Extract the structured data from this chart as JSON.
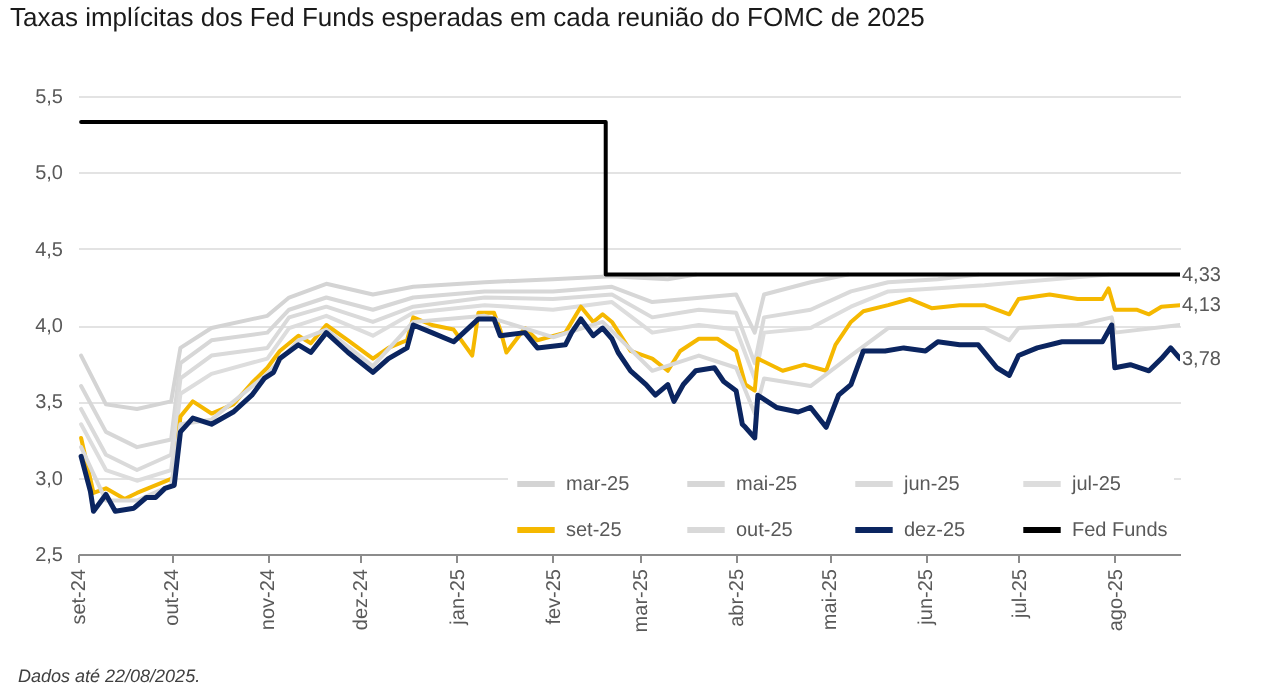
{
  "chart_data": {
    "type": "line",
    "title": "Taxas implícitas dos Fed Funds esperadas em cada reunião do FOMC de 2025",
    "annotations": [
      "Dados até 22/08/2025.",
      {
        "text": "4,33",
        "x": "2025-08-22",
        "y": 4.33
      },
      {
        "text": "4,13",
        "x": "2025-08-22",
        "y": 4.13
      },
      {
        "text": "3,78",
        "x": "2025-08-22",
        "y": 3.78
      }
    ],
    "xlim": [
      "2024-09-01",
      "2025-08-22"
    ],
    "xticks": [
      {
        "value": "2024-09-01",
        "label": "set-24"
      },
      {
        "value": "2024-10-01",
        "label": "out-24"
      },
      {
        "value": "2024-11-01",
        "label": "nov-24"
      },
      {
        "value": "2024-12-01",
        "label": "dez-24"
      },
      {
        "value": "2025-01-01",
        "label": "jan-25"
      },
      {
        "value": "2025-02-01",
        "label": "fev-25"
      },
      {
        "value": "2025-03-01",
        "label": "mar-25"
      },
      {
        "value": "2025-04-01",
        "label": "abr-25"
      },
      {
        "value": "2025-05-01",
        "label": "mai-25"
      },
      {
        "value": "2025-06-01",
        "label": "jun-25"
      },
      {
        "value": "2025-07-01",
        "label": "jul-25"
      },
      {
        "value": "2025-08-01",
        "label": "ago-25"
      }
    ],
    "ylim": [
      2.5,
      5.5
    ],
    "yticks": [
      {
        "value": 2.5,
        "label": "2,5"
      },
      {
        "value": 3,
        "label": "3,0"
      },
      {
        "value": 3.5,
        "label": "3,5"
      },
      {
        "value": 4,
        "label": "4,0"
      },
      {
        "value": 4.5,
        "label": "4,5"
      },
      {
        "value": 5,
        "label": "5,0"
      },
      {
        "value": 5.5,
        "label": "5,5"
      }
    ],
    "grid": "y",
    "legend": "bottom right",
    "series": [
      {
        "name": "mar-25",
        "color": "#d4d4d4",
        "x": [
          "2024-09-02",
          "2024-09-10",
          "2024-09-20",
          "2024-10-01",
          "2024-10-04",
          "2024-10-14",
          "2024-11-01",
          "2024-11-08",
          "2024-11-20",
          "2024-12-05",
          "2024-12-18",
          "2025-01-10",
          "2025-02-01",
          "2025-02-20",
          "2025-03-10",
          "2025-03-19"
        ],
        "values": [
          3.8,
          3.48,
          3.45,
          3.5,
          3.85,
          3.98,
          4.06,
          4.18,
          4.27,
          4.2,
          4.25,
          4.28,
          4.3,
          4.32,
          4.3,
          4.33
        ]
      },
      {
        "name": "mai-25",
        "color": "#d7d7d7",
        "x": [
          "2024-09-02",
          "2024-09-10",
          "2024-09-20",
          "2024-10-01",
          "2024-10-04",
          "2024-10-14",
          "2024-11-01",
          "2024-11-08",
          "2024-11-20",
          "2024-12-05",
          "2024-12-18",
          "2025-01-10",
          "2025-02-01",
          "2025-02-20",
          "2025-03-05",
          "2025-04-01",
          "2025-04-07",
          "2025-04-10",
          "2025-04-25",
          "2025-05-07"
        ],
        "values": [
          3.6,
          3.3,
          3.2,
          3.25,
          3.75,
          3.9,
          3.95,
          4.1,
          4.18,
          4.1,
          4.18,
          4.22,
          4.22,
          4.25,
          4.15,
          4.2,
          3.95,
          4.2,
          4.28,
          4.33
        ]
      },
      {
        "name": "jun-25",
        "color": "#dadada",
        "x": [
          "2024-09-02",
          "2024-09-10",
          "2024-09-20",
          "2024-10-01",
          "2024-10-04",
          "2024-10-14",
          "2024-11-01",
          "2024-11-08",
          "2024-11-20",
          "2024-12-05",
          "2024-12-18",
          "2025-01-10",
          "2025-02-01",
          "2025-02-20",
          "2025-03-05",
          "2025-03-20",
          "2025-04-01",
          "2025-04-07",
          "2025-04-10",
          "2025-04-25",
          "2025-05-08",
          "2025-05-20",
          "2025-06-05",
          "2025-06-18"
        ],
        "values": [
          3.45,
          3.15,
          3.05,
          3.15,
          3.65,
          3.8,
          3.85,
          4.05,
          4.12,
          4.02,
          4.12,
          4.18,
          4.17,
          4.2,
          4.05,
          4.1,
          4.08,
          3.75,
          4.05,
          4.1,
          4.22,
          4.28,
          4.3,
          4.33
        ]
      },
      {
        "name": "jul-25",
        "color": "#dddddd",
        "x": [
          "2024-09-02",
          "2024-09-10",
          "2024-09-20",
          "2024-10-01",
          "2024-10-04",
          "2024-10-14",
          "2024-11-01",
          "2024-11-08",
          "2024-11-20",
          "2024-12-05",
          "2024-12-18",
          "2025-01-10",
          "2025-02-01",
          "2025-02-20",
          "2025-03-05",
          "2025-03-20",
          "2025-04-01",
          "2025-04-07",
          "2025-04-10",
          "2025-04-25",
          "2025-05-08",
          "2025-05-20",
          "2025-06-05",
          "2025-06-20",
          "2025-07-01",
          "2025-07-30"
        ],
        "values": [
          3.35,
          3.05,
          2.98,
          3.05,
          3.55,
          3.68,
          3.78,
          3.98,
          4.06,
          3.93,
          4.08,
          4.13,
          4.1,
          4.15,
          3.95,
          4.0,
          3.97,
          3.65,
          3.95,
          3.98,
          4.12,
          4.22,
          4.24,
          4.26,
          4.28,
          4.33
        ]
      },
      {
        "name": "set-25",
        "color": "#f5b800",
        "x": [
          "2024-09-02",
          "2024-09-06",
          "2024-09-10",
          "2024-09-16",
          "2024-09-20",
          "2024-10-02",
          "2024-10-04",
          "2024-10-08",
          "2024-10-14",
          "2024-10-21",
          "2024-10-27",
          "2024-11-01",
          "2024-11-05",
          "2024-11-11",
          "2024-11-15",
          "2024-11-20",
          "2024-11-27",
          "2024-12-05",
          "2024-12-10",
          "2024-12-16",
          "2024-12-18",
          "2024-12-24",
          "2024-12-31",
          "2025-01-06",
          "2025-01-08",
          "2025-01-13",
          "2025-01-15",
          "2025-01-17",
          "2025-01-23",
          "2025-01-27",
          "2025-02-05",
          "2025-02-10",
          "2025-02-14",
          "2025-02-17",
          "2025-02-20",
          "2025-02-26",
          "2025-03-05",
          "2025-03-10",
          "2025-03-14",
          "2025-03-20",
          "2025-03-26",
          "2025-04-01",
          "2025-04-04",
          "2025-04-07",
          "2025-04-08",
          "2025-04-16",
          "2025-04-23",
          "2025-04-30",
          "2025-05-03",
          "2025-05-08",
          "2025-05-12",
          "2025-05-20",
          "2025-05-27",
          "2025-06-03",
          "2025-06-12",
          "2025-06-20",
          "2025-06-28",
          "2025-07-01",
          "2025-07-11",
          "2025-07-20",
          "2025-07-28",
          "2025-07-30",
          "2025-08-01",
          "2025-08-08",
          "2025-08-12",
          "2025-08-16",
          "2025-08-22"
        ],
        "values": [
          3.26,
          2.9,
          2.93,
          2.86,
          2.9,
          3.0,
          3.4,
          3.5,
          3.42,
          3.48,
          3.62,
          3.72,
          3.83,
          3.93,
          3.88,
          4.0,
          3.9,
          3.78,
          3.85,
          3.9,
          4.05,
          4.0,
          3.97,
          3.8,
          4.08,
          4.08,
          3.97,
          3.82,
          3.98,
          3.9,
          3.95,
          4.12,
          4.02,
          4.07,
          4.02,
          3.83,
          3.78,
          3.7,
          3.83,
          3.91,
          3.91,
          3.83,
          3.61,
          3.57,
          3.78,
          3.7,
          3.74,
          3.7,
          3.87,
          4.02,
          4.09,
          4.13,
          4.17,
          4.11,
          4.13,
          4.13,
          4.07,
          4.17,
          4.2,
          4.17,
          4.17,
          4.24,
          4.1,
          4.1,
          4.07,
          4.12,
          4.13
        ]
      },
      {
        "name": "out-25",
        "color": "#d9d9d9",
        "x": [
          "2024-09-02",
          "2024-09-10",
          "2024-09-20",
          "2024-10-01",
          "2024-10-04",
          "2024-10-14",
          "2024-11-01",
          "2024-11-11",
          "2024-11-20",
          "2024-12-05",
          "2024-12-18",
          "2025-01-10",
          "2025-02-01",
          "2025-02-17",
          "2025-03-05",
          "2025-03-20",
          "2025-04-01",
          "2025-04-07",
          "2025-04-10",
          "2025-04-25",
          "2025-05-08",
          "2025-05-20",
          "2025-06-05",
          "2025-06-20",
          "2025-06-28",
          "2025-07-01",
          "2025-07-20",
          "2025-07-31",
          "2025-08-01",
          "2025-08-22"
        ],
        "values": [
          3.2,
          2.85,
          2.85,
          2.95,
          3.35,
          3.38,
          3.68,
          3.9,
          3.97,
          3.73,
          4.02,
          4.06,
          3.92,
          4.02,
          3.7,
          3.8,
          3.72,
          3.42,
          3.65,
          3.6,
          3.8,
          3.98,
          3.98,
          3.98,
          3.9,
          3.98,
          4.0,
          4.05,
          3.95,
          4.0
        ]
      },
      {
        "name": "dez-25",
        "color": "#0b2560",
        "x": [
          "2024-09-02",
          "2024-09-05",
          "2024-09-06",
          "2024-09-10",
          "2024-09-13",
          "2024-09-16",
          "2024-09-19",
          "2024-09-23",
          "2024-09-26",
          "2024-09-29",
          "2024-10-02",
          "2024-10-04",
          "2024-10-08",
          "2024-10-14",
          "2024-10-21",
          "2024-10-27",
          "2024-10-31",
          "2024-11-03",
          "2024-11-05",
          "2024-11-11",
          "2024-11-15",
          "2024-11-20",
          "2024-11-27",
          "2024-12-05",
          "2024-12-10",
          "2024-12-16",
          "2024-12-18",
          "2024-12-24",
          "2024-12-31",
          "2025-01-08",
          "2025-01-13",
          "2025-01-15",
          "2025-01-23",
          "2025-01-27",
          "2025-02-05",
          "2025-02-07",
          "2025-02-10",
          "2025-02-14",
          "2025-02-17",
          "2025-02-20",
          "2025-02-22",
          "2025-02-26",
          "2025-03-03",
          "2025-03-06",
          "2025-03-10",
          "2025-03-12",
          "2025-03-15",
          "2025-03-19",
          "2025-03-25",
          "2025-03-28",
          "2025-04-01",
          "2025-04-03",
          "2025-04-04",
          "2025-04-07",
          "2025-04-08",
          "2025-04-14",
          "2025-04-21",
          "2025-04-25",
          "2025-04-30",
          "2025-05-04",
          "2025-05-08",
          "2025-05-12",
          "2025-05-19",
          "2025-05-25",
          "2025-06-01",
          "2025-06-05",
          "2025-06-12",
          "2025-06-18",
          "2025-06-24",
          "2025-06-28",
          "2025-07-01",
          "2025-07-07",
          "2025-07-15",
          "2025-07-24",
          "2025-07-28",
          "2025-07-31",
          "2025-08-01",
          "2025-08-06",
          "2025-08-12",
          "2025-08-16",
          "2025-08-19",
          "2025-08-22"
        ],
        "values": [
          3.14,
          2.91,
          2.78,
          2.89,
          2.78,
          2.79,
          2.8,
          2.87,
          2.87,
          2.93,
          2.95,
          3.3,
          3.39,
          3.35,
          3.43,
          3.54,
          3.65,
          3.69,
          3.78,
          3.87,
          3.82,
          3.95,
          3.82,
          3.69,
          3.78,
          3.85,
          4.0,
          3.95,
          3.89,
          4.04,
          4.04,
          3.93,
          3.95,
          3.85,
          3.87,
          3.95,
          4.04,
          3.93,
          3.98,
          3.91,
          3.82,
          3.7,
          3.61,
          3.54,
          3.61,
          3.5,
          3.61,
          3.7,
          3.72,
          3.63,
          3.57,
          3.35,
          3.33,
          3.26,
          3.54,
          3.46,
          3.43,
          3.46,
          3.33,
          3.54,
          3.61,
          3.83,
          3.83,
          3.85,
          3.83,
          3.89,
          3.87,
          3.87,
          3.72,
          3.67,
          3.8,
          3.85,
          3.89,
          3.89,
          3.89,
          4.0,
          3.72,
          3.74,
          3.7,
          3.78,
          3.85,
          3.78
        ]
      },
      {
        "name": "Fed Funds",
        "color": "#000000",
        "type": "step",
        "x": [
          "2024-09-02",
          "2025-02-18",
          "2025-08-22"
        ],
        "values": [
          5.33,
          4.33,
          4.33
        ]
      }
    ]
  }
}
